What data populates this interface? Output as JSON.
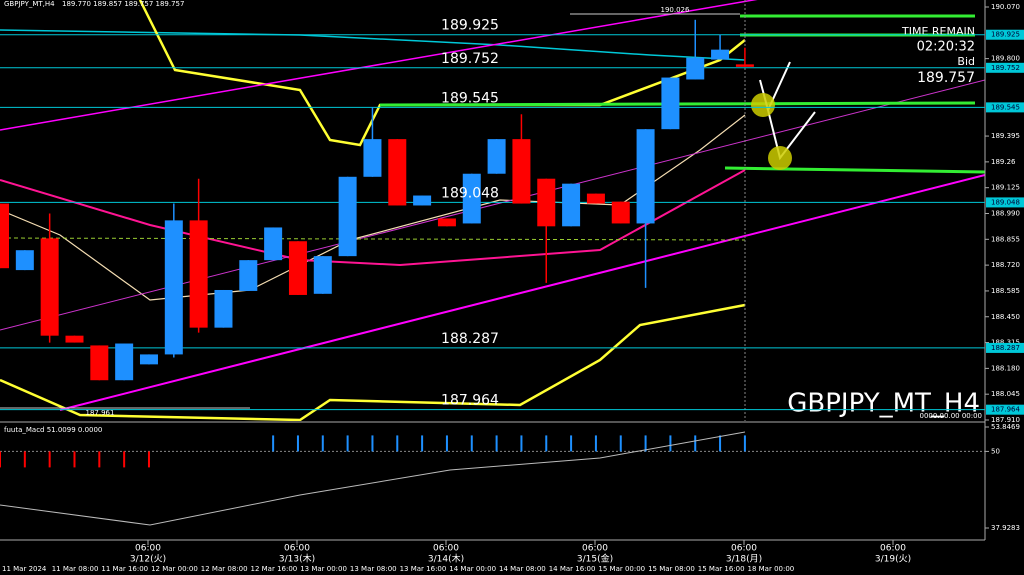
{
  "header": {
    "title": "GBPJPY_MT,H4",
    "ohlc": "189.770 189.857 189.757 189.757"
  },
  "chart_data": {
    "type": "candlestick",
    "open": [
      189.042,
      188.694,
      188.86,
      188.351,
      188.3,
      188.118,
      188.201,
      188.253,
      188.954,
      188.393,
      188.585,
      188.746,
      188.845,
      188.57,
      188.767,
      189.182,
      189.379,
      189.032,
      188.964,
      188.938,
      189.198,
      189.379,
      189.172,
      188.923,
      189.094,
      189.052,
      188.938,
      189.431,
      189.691,
      189.795,
      189.77
    ],
    "high": [
      189.042,
      188.798,
      188.99,
      188.351,
      188.3,
      188.31,
      188.253,
      189.042,
      189.172,
      188.59,
      188.746,
      188.917,
      188.845,
      188.767,
      189.182,
      189.546,
      189.379,
      189.084,
      188.964,
      189.198,
      189.379,
      189.509,
      189.172,
      189.146,
      189.094,
      189.052,
      189.431,
      189.701,
      190.003,
      189.925,
      189.857
    ],
    "low": [
      188.704,
      188.694,
      188.315,
      188.315,
      188.118,
      188.118,
      188.201,
      188.237,
      188.367,
      188.393,
      188.585,
      188.746,
      188.564,
      188.57,
      188.767,
      189.182,
      189.032,
      189.032,
      188.923,
      188.938,
      189.198,
      189.042,
      188.627,
      188.923,
      189.042,
      188.938,
      188.601,
      189.431,
      189.691,
      189.795,
      189.757
    ],
    "close": [
      188.704,
      188.798,
      188.351,
      188.315,
      188.118,
      188.31,
      188.253,
      188.954,
      188.393,
      188.59,
      188.746,
      188.917,
      188.564,
      188.767,
      189.182,
      189.379,
      189.032,
      189.084,
      188.923,
      189.198,
      189.379,
      189.042,
      188.923,
      189.146,
      189.042,
      188.938,
      189.431,
      189.701,
      189.805,
      189.847,
      189.757
    ],
    "up_color": "#1e90ff",
    "down_color": "#ff0000",
    "ylim": [
      187.91,
      190.07
    ],
    "yticks": [
      {
        "value": 190.07,
        "label": "190.070"
      },
      {
        "value": 189.8,
        "label": "189.800"
      },
      189.395,
      189.26,
      189.125,
      {
        "value": 188.99,
        "label": "188.990"
      },
      188.855,
      {
        "value": 188.72,
        "label": "188.720"
      },
      188.585,
      {
        "value": 188.45,
        "label": "188.450"
      },
      188.315,
      {
        "value": 188.18,
        "label": "188.180"
      },
      188.045,
      {
        "value": 187.91,
        "label": "187.910"
      }
    ],
    "levels": [
      189.925,
      189.752,
      189.545,
      189.048,
      188.287,
      187.964
    ],
    "level_color": "#00c8d8",
    "marker_labels": [
      190.026,
      187.961
    ],
    "info": {
      "time_remain": "TIME REMAIN",
      "countdown": "02:20:32",
      "bid_label": "Bid",
      "bid": 189.757
    },
    "symbol": "GBPJPY_MT_H4",
    "timestamp": "0000.00.00 00:00",
    "macd": {
      "name": "fuuta_Macd 51.0099 0.0000",
      "ylim": [
        37.9283,
        53.8469
      ],
      "yticks": [
        53.8469,
        50,
        37.9283
      ],
      "hist": [
        47.48,
        47.48,
        47.48,
        47.48,
        47.48,
        47.48,
        47.48,
        50,
        50,
        50,
        50,
        52.52,
        52.52,
        52.52,
        52.52,
        52.52,
        52.52,
        52.52,
        52.52,
        52.52,
        52.52,
        52.52,
        52.52,
        52.52,
        52.52,
        52.52,
        52.52,
        52.52,
        52.52,
        52.52,
        52.52
      ]
    },
    "time_labels": [
      "06:00",
      "06:00",
      "06:00",
      "06:00",
      "06:00",
      "06:00"
    ],
    "day_labels": [
      "3/12(火)",
      "3/13(木)",
      "3/14(木)",
      "3/15(金)",
      "3/18(月)",
      "3/19(火)"
    ],
    "date_labels": [
      "11 Mar 2024",
      "11 Mar 08:00",
      "11 Mar 16:00",
      "12 Mar 00:00",
      "12 Mar 08:00",
      "12 Mar 16:00",
      "13 Mar 00:00",
      "13 Mar 08:00",
      "13 Mar 16:00",
      "14 Mar 00:00",
      "14 Mar 08:00",
      "14 Mar 16:00",
      "15 Mar 00:00",
      "15 Mar 08:00",
      "15 Mar 16:00",
      "18 Mar 00:00"
    ]
  }
}
